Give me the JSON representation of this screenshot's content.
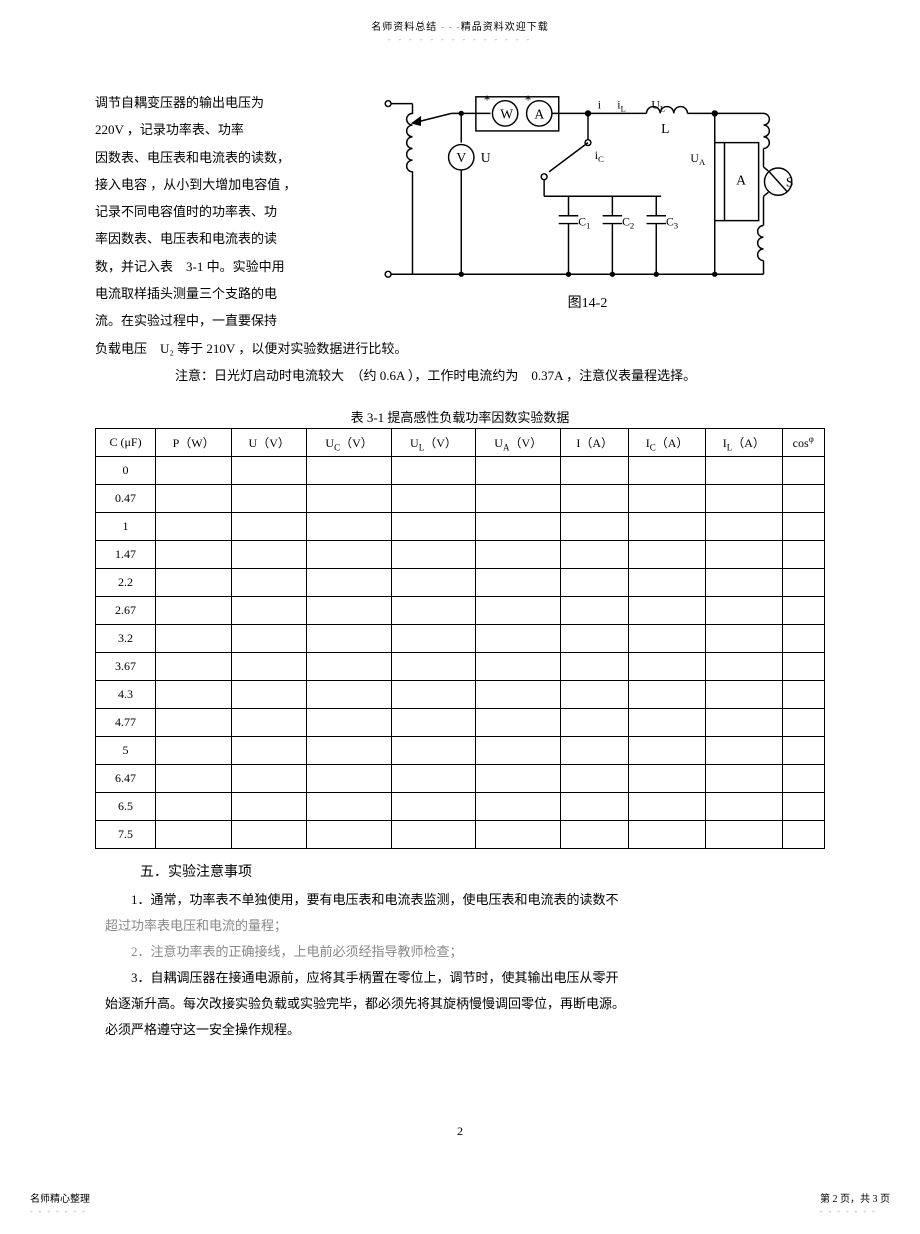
{
  "header": {
    "left": "名师资料总结 ",
    "right": "精品资料欢迎下载",
    "separator": "- - -",
    "dots": "- - - - - - - - - - - - - -"
  },
  "intro": {
    "line1": "调节自耦变压器的输出电压为",
    "line2_a": "220V ，记录功率表、功率",
    "line3": "因数表、电压表和电流表的读数，",
    "line4": "接入电容 ，从小到大增加电容值 ，",
    "line5": "记录不同电容值时的功率表、功",
    "line6": "率因数表、电压表和电流表的读",
    "line7": "数，并记入表　3-1 中。实验中用",
    "line8": "电流取样插头测量三个支路的电",
    "line9": "流。在实验过程中，一直要保持",
    "line10": "负载电压　U₂ 等于 210V ，以便对实验数据进行比较。",
    "note": "注意：日光灯启动时电流较大　（约 0.6A ），工作时电流约为　0.37A ，注意仪表量程选择。"
  },
  "circuit": {
    "caption": "图14-2",
    "labels": {
      "W": "W",
      "A_meter": "A",
      "V": "V",
      "U": "U",
      "i": "i",
      "iL": "i",
      "iLsub": "L",
      "iC": "i",
      "iCsub": "C",
      "L": "L",
      "UL": "U",
      "ULsub": "L",
      "UA": "U",
      "UAsub": "A",
      "Abig": "A",
      "S": "S",
      "C1": "C",
      "C1sub": "1",
      "C2": "C",
      "C2sub": "2",
      "C3": "C",
      "C3sub": "3"
    }
  },
  "table": {
    "caption": "表 3-1 提高感性负载功率因数实验数据",
    "headers": [
      "C (μF)",
      "P（W）",
      "U（V）",
      "U<sub>C</sub>（V）",
      "U<sub>L</sub>（V）",
      "U<sub>A</sub>（V）",
      "I（A）",
      "I<sub>C</sub>（A）",
      "I<sub>L</sub>（A）",
      "cos<sup>φ</sup>"
    ],
    "c_values": [
      "0",
      "0.47",
      "1",
      "1.47",
      "2.2",
      "2.67",
      "3.2",
      "3.67",
      "4.3",
      "4.77",
      "5",
      "6.47",
      "6.5",
      "7.5"
    ],
    "num_cols": 10
  },
  "section5": {
    "heading": "五．实验注意事项",
    "p1a": "1．通常，功率表不单独使用，要有电压表和电流表监测，使电压表和电流表的读数不",
    "p1b": "超过功率表电压和电流的量程；",
    "p2": "2．注意功率表的正确接线，上电前必须经指导教师检查；",
    "p3a": "3．自耦调压器在接通电源前，应将其手柄置在零位上，调节时，使其输出电压从零开",
    "p3b": "始逐渐升高。每次改接实验负载或实验完毕，都必须先将其旋柄慢慢调回零位，再断电源。",
    "p3c": "必须严格遵守这一安全操作规程。"
  },
  "page_num": "2",
  "footer": {
    "left": "名师精心整理",
    "right": "第 2 页，共 3 页",
    "dots": "- - - - - - -"
  },
  "style": {
    "colors": {
      "text": "#000000",
      "light_text": "#888888",
      "very_light": "#999999",
      "border": "#000000",
      "bg": "#ffffff"
    },
    "fonts": {
      "body_size": 13,
      "small": 10,
      "table": 12
    }
  }
}
